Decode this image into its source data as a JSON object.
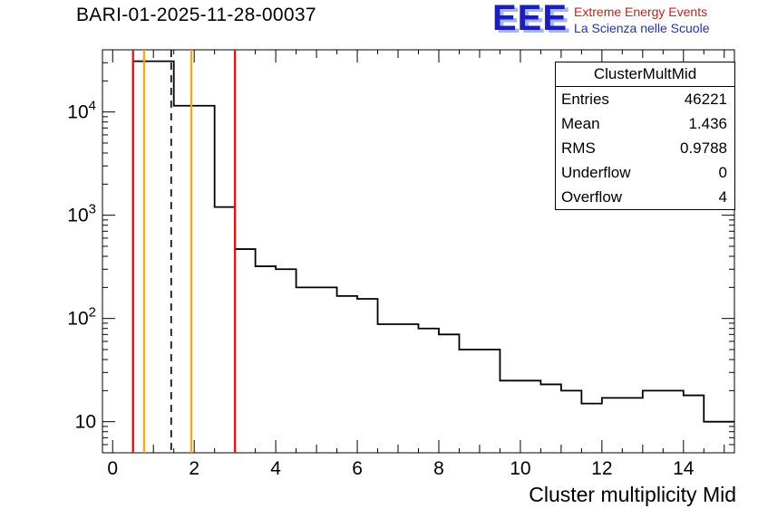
{
  "page": {
    "background": "#ffffff"
  },
  "header": {
    "title": "BARI-01-2025-11-28-00037",
    "logo": {
      "acronym": "EEE",
      "line1": "Extreme Energy Events",
      "line2": "La Scienza nelle Scuole",
      "acronym_color": "#1c1cc4",
      "acronym_shadow": "#a4b8e8",
      "line1_color": "#cc2020",
      "line2_color": "#2030c8"
    }
  },
  "stats_box": {
    "title": "ClusterMultMid",
    "rows": [
      {
        "label": "Entries",
        "value": "46221"
      },
      {
        "label": "Mean",
        "value": "1.436"
      },
      {
        "label": "RMS",
        "value": "0.9788"
      },
      {
        "label": "Underflow",
        "value": "0"
      },
      {
        "label": "Overflow",
        "value": "4"
      }
    ]
  },
  "chart_data": {
    "type": "bar",
    "subtype": "step-histogram-log-y",
    "title": "BARI-01-2025-11-28-00037",
    "xlabel": "Cluster multiplicity Mid",
    "ylabel": "",
    "x_range": [
      -0.25,
      15.25
    ],
    "y_range": [
      5,
      40000
    ],
    "y_scale": "log",
    "grid": false,
    "x_major_ticks": [
      0,
      2,
      4,
      6,
      8,
      10,
      12,
      14
    ],
    "y_major_ticks": [
      10,
      100,
      1000,
      10000
    ],
    "histogram_color": "#000000",
    "steps": [
      {
        "x1": 0.5,
        "x2": 1.5,
        "count": 31000
      },
      {
        "x1": 1.5,
        "x2": 2.5,
        "count": 11500
      },
      {
        "x1": 2.5,
        "x2": 3.0,
        "count": 1200
      },
      {
        "x1": 3.0,
        "x2": 3.5,
        "count": 470
      },
      {
        "x1": 3.5,
        "x2": 4.0,
        "count": 320
      },
      {
        "x1": 4.0,
        "x2": 4.5,
        "count": 300
      },
      {
        "x1": 4.5,
        "x2": 5.5,
        "count": 200
      },
      {
        "x1": 5.5,
        "x2": 6.0,
        "count": 165
      },
      {
        "x1": 6.0,
        "x2": 6.5,
        "count": 155
      },
      {
        "x1": 6.5,
        "x2": 7.5,
        "count": 88
      },
      {
        "x1": 7.5,
        "x2": 8.0,
        "count": 80
      },
      {
        "x1": 8.0,
        "x2": 8.5,
        "count": 70
      },
      {
        "x1": 8.5,
        "x2": 9.5,
        "count": 50
      },
      {
        "x1": 9.5,
        "x2": 10.5,
        "count": 25
      },
      {
        "x1": 10.5,
        "x2": 11.0,
        "count": 23
      },
      {
        "x1": 11.0,
        "x2": 11.5,
        "count": 20
      },
      {
        "x1": 11.5,
        "x2": 12.0,
        "count": 15
      },
      {
        "x1": 12.0,
        "x2": 13.0,
        "count": 17
      },
      {
        "x1": 13.0,
        "x2": 14.0,
        "count": 20
      },
      {
        "x1": 14.0,
        "x2": 14.5,
        "count": 18
      },
      {
        "x1": 14.5,
        "x2": 15.25,
        "count": 10
      }
    ],
    "marker_lines": [
      {
        "x": 0.5,
        "color": "#ff0000",
        "style": "solid",
        "name": "cut-low-red-line"
      },
      {
        "x": 0.77,
        "color": "#ffa500",
        "style": "solid",
        "name": "orange-line-low"
      },
      {
        "x": 1.436,
        "color": "#000000",
        "style": "dashed",
        "name": "mean-dashed-line"
      },
      {
        "x": 1.93,
        "color": "#ffa500",
        "style": "solid",
        "name": "orange-line-high"
      },
      {
        "x": 3.0,
        "color": "#ff0000",
        "style": "solid",
        "name": "cut-high-red-line"
      }
    ]
  }
}
